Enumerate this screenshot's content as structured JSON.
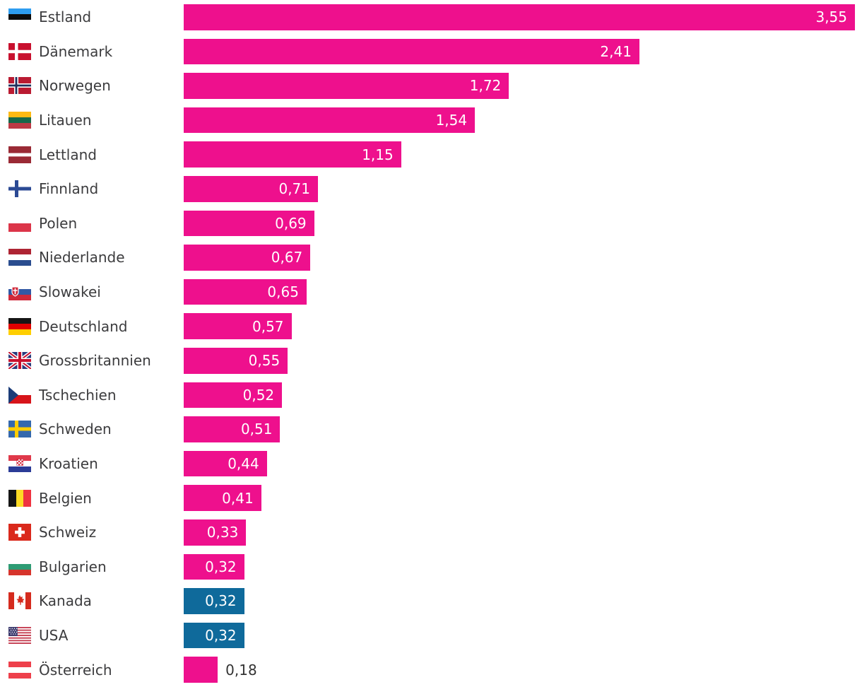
{
  "chart_data": {
    "type": "bar",
    "orientation": "horizontal",
    "title": "",
    "xlabel": "",
    "ylabel": "",
    "grid": false,
    "legend": false,
    "xlim": [
      0,
      3.55
    ],
    "categories": [
      "Estland",
      "Dänemark",
      "Norwegen",
      "Litauen",
      "Lettland",
      "Finnland",
      "Polen",
      "Niederlande",
      "Slowakei",
      "Deutschland",
      "Grossbritannien",
      "Tschechien",
      "Schweden",
      "Kroatien",
      "Belgien",
      "Schweiz",
      "Bulgarien",
      "Kanada",
      "USA",
      "Österreich"
    ],
    "values": [
      3.55,
      2.41,
      1.72,
      1.54,
      1.15,
      0.71,
      0.69,
      0.67,
      0.65,
      0.57,
      0.55,
      0.52,
      0.51,
      0.44,
      0.41,
      0.33,
      0.32,
      0.32,
      0.32,
      0.18
    ],
    "value_labels": [
      "3,55",
      "2,41",
      "1,72",
      "1,54",
      "1,15",
      "0,71",
      "0,69",
      "0,67",
      "0,65",
      "0,57",
      "0,55",
      "0,52",
      "0,51",
      "0,44",
      "0,41",
      "0,33",
      "0,32",
      "0,32",
      "0,32",
      "0,18"
    ],
    "flag_codes": [
      "ee",
      "dk",
      "no",
      "lt",
      "lv",
      "fi",
      "pl",
      "nl",
      "sk",
      "de",
      "gb",
      "cz",
      "se",
      "hr",
      "be",
      "ch",
      "bg",
      "ca",
      "us",
      "at"
    ],
    "flag_icon_names": [
      "estonia-flag-icon",
      "denmark-flag-icon",
      "norway-flag-icon",
      "lithuania-flag-icon",
      "latvia-flag-icon",
      "finland-flag-icon",
      "poland-flag-icon",
      "netherlands-flag-icon",
      "slovakia-flag-icon",
      "germany-flag-icon",
      "uk-flag-icon",
      "czechia-flag-icon",
      "sweden-flag-icon",
      "croatia-flag-icon",
      "belgium-flag-icon",
      "switzerland-flag-icon",
      "bulgaria-flag-icon",
      "canada-flag-icon",
      "usa-flag-icon",
      "austria-flag-icon"
    ],
    "highlight_indices": [
      17,
      18
    ],
    "colors": {
      "bar": "#ee108d",
      "bar_highlight": "#0f6a9b",
      "label_text": "#3c3c3e",
      "value_inside": "#ffffff",
      "value_outside": "#333333",
      "background": "#ffffff"
    }
  }
}
